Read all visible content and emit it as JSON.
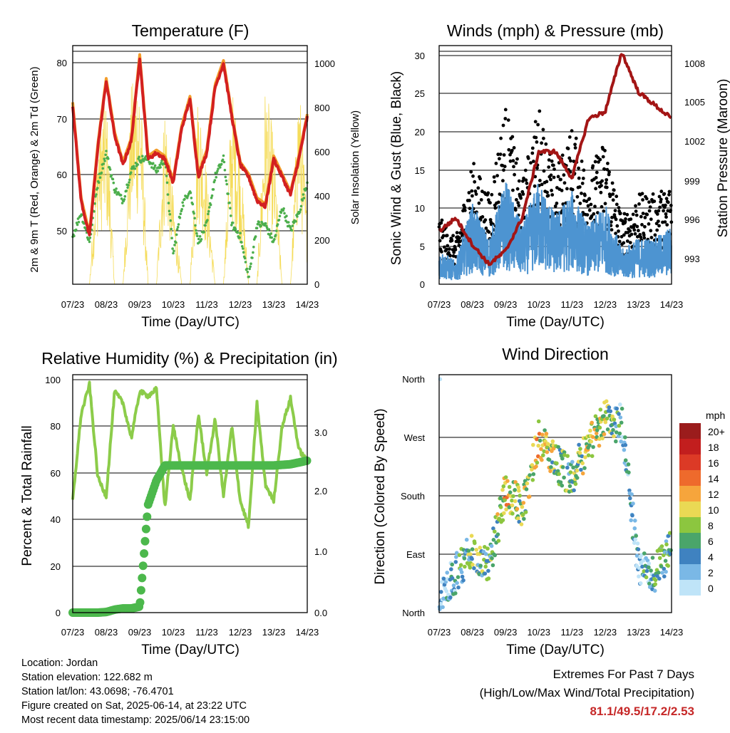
{
  "x_ticks": [
    "07/23",
    "08/23",
    "09/23",
    "10/23",
    "11/23",
    "12/23",
    "13/23",
    "14/23"
  ],
  "x_label": "Time (Day/UTC)",
  "temperature": {
    "title": "Temperature (F)",
    "ylabel_left": "2m & 9m T (Red, Orange) & 2m Td (Green)",
    "ylabel_right": "Solar Insolation (Yellow)",
    "left_ticks": [
      "50",
      "60",
      "70",
      "80"
    ],
    "right_ticks": [
      "0",
      "200",
      "400",
      "600",
      "800",
      "1000"
    ],
    "colors": {
      "t2m": "#d32020",
      "t9m": "#f39c2a",
      "td": "#4cae4c",
      "solar": "#f5dc5a"
    }
  },
  "winds": {
    "title": "Winds (mph) & Pressure (mb)",
    "ylabel_left": "Sonic Wind & Gust (Blue, Black)",
    "ylabel_right": "Station Pressure (Maroon)",
    "left_ticks": [
      "0",
      "5",
      "10",
      "15",
      "20",
      "25",
      "30"
    ],
    "right_ticks": [
      "993",
      "996",
      "999",
      "1002",
      "1005",
      "1008"
    ],
    "colors": {
      "wind": "#4d94d1",
      "gust": "#000000",
      "pressure": "#a31515"
    }
  },
  "humidity": {
    "title": "Relative Humidity (%) & Precipitation (in)",
    "ylabel_left": "Percent & Total Rainfall",
    "left_ticks": [
      "0",
      "20",
      "40",
      "60",
      "80",
      "100"
    ],
    "right_ticks": [
      "0.0",
      "1.0",
      "2.0",
      "3.0"
    ],
    "colors": {
      "rh": "#8ccc4a",
      "precip": "#4cb84c"
    }
  },
  "direction": {
    "title": "Wind Direction",
    "ylabel": "Direction (Colored By Speed)",
    "y_ticks": [
      "North",
      "East",
      "South",
      "West",
      "North"
    ],
    "legend_title": "mph",
    "legend": [
      {
        "label": "20+",
        "color": "#9b1c1c"
      },
      {
        "label": "18",
        "color": "#c21e1e"
      },
      {
        "label": "16",
        "color": "#dc3a26"
      },
      {
        "label": "14",
        "color": "#ee6a2c"
      },
      {
        "label": "12",
        "color": "#f6a53c"
      },
      {
        "label": "10",
        "color": "#ead954"
      },
      {
        "label": "8",
        "color": "#8cc63f"
      },
      {
        "label": "6",
        "color": "#4aa56a"
      },
      {
        "label": "4",
        "color": "#3f82c0"
      },
      {
        "label": "2",
        "color": "#7ab8e6"
      },
      {
        "label": "0",
        "color": "#bfe4f8"
      }
    ]
  },
  "info": {
    "location": "Location: Jordan",
    "elevation": "Station elevation: 122.682 m",
    "latlon": "Station lat/lon: 43.0698; -76.4701",
    "created": "Figure created on Sat, 2025-06-14, at 23:22 UTC",
    "recent": "Most recent data timestamp: 2025/06/14 23:15:00"
  },
  "extremes": {
    "line1": "Extremes For Past 7 Days",
    "line2": "(High/Low/Max Wind/Total Precipitation)",
    "values": "81.1/49.5/17.2/2.53"
  },
  "chart_data": [
    {
      "type": "line",
      "title": "Temperature (F)",
      "xlabel": "Time (Day/UTC)",
      "ylabel": "2m & 9m T (Red, Orange) & 2m Td (Green)",
      "ylim": [
        42,
        82
      ],
      "y2lim": [
        0,
        1050
      ],
      "x": [
        0,
        0.25,
        0.5,
        0.75,
        1,
        1.25,
        1.5,
        1.75,
        2,
        2.25,
        2.5,
        2.75,
        3,
        3.25,
        3.5,
        3.75,
        4,
        4.25,
        4.5,
        4.75,
        5,
        5.25,
        5.5,
        5.75,
        6,
        6.25,
        6.5,
        6.75,
        7
      ],
      "series": [
        {
          "name": "2m T",
          "values": [
            72,
            56,
            50,
            65,
            76,
            67,
            62,
            66,
            80,
            63,
            64,
            63,
            59,
            68,
            73,
            60,
            64,
            75,
            79,
            70,
            62,
            60,
            56,
            55,
            63,
            60,
            57,
            63,
            70
          ]
        },
        {
          "name": "2m Td",
          "values": [
            50,
            54,
            49,
            59,
            64,
            58,
            56,
            61,
            63,
            63,
            61,
            63,
            47,
            55,
            58,
            49,
            52,
            60,
            63,
            52,
            50,
            43,
            52,
            52,
            49,
            55,
            51,
            54,
            59
          ]
        },
        {
          "name": "Solar Insolation",
          "values": [
            0,
            0,
            0,
            700,
            850,
            0,
            0,
            880,
            1000,
            0,
            0,
            850,
            400,
            0,
            0,
            900,
            500,
            0,
            0,
            880,
            600,
            0,
            0,
            900,
            650,
            0,
            0,
            950,
            300
          ]
        }
      ]
    },
    {
      "type": "line",
      "title": "Winds (mph) & Pressure (mb)",
      "xlabel": "Time (Day/UTC)",
      "ylabel": "Sonic Wind & Gust (Blue, Black)",
      "ylim": [
        0,
        30.5
      ],
      "y2lim": [
        991,
        1009
      ],
      "x": [
        0,
        0.5,
        1,
        1.5,
        2,
        2.5,
        3,
        3.5,
        4,
        4.5,
        5,
        5.5,
        6,
        6.5,
        7
      ],
      "series": [
        {
          "name": "Sonic Wind",
          "values": [
            3,
            2,
            7,
            4,
            9,
            5,
            9,
            6,
            8,
            5,
            7,
            3,
            4,
            4,
            5
          ]
        },
        {
          "name": "Gust",
          "values": [
            6,
            4,
            11,
            8,
            16,
            9,
            16,
            10,
            14,
            10,
            13,
            6,
            8,
            8,
            9
          ]
        },
        {
          "name": "Station Pressure",
          "values": [
            995,
            996,
            994,
            992.5,
            993.5,
            996,
            1001,
            1001,
            999,
            1003.5,
            1004,
            1008.5,
            1005.5,
            1004.5,
            1003.5
          ]
        }
      ]
    },
    {
      "type": "line",
      "title": "Relative Humidity (%) & Precipitation (in)",
      "xlabel": "Time (Day/UTC)",
      "ylabel": "Percent & Total Rainfall",
      "ylim": [
        0,
        100
      ],
      "y2lim": [
        0,
        3.8
      ],
      "x": [
        0,
        0.25,
        0.5,
        0.75,
        1,
        1.25,
        1.5,
        1.75,
        2,
        2.25,
        2.5,
        2.75,
        3,
        3.25,
        3.5,
        3.75,
        4,
        4.25,
        4.5,
        4.75,
        5,
        5.25,
        5.5,
        5.75,
        6,
        6.25,
        6.5,
        6.75,
        7
      ],
      "series": [
        {
          "name": "Relative Humidity",
          "values": [
            48,
            85,
            98,
            58,
            50,
            95,
            90,
            75,
            95,
            93,
            96,
            45,
            80,
            62,
            48,
            85,
            60,
            83,
            50,
            80,
            48,
            37,
            90,
            55,
            48,
            80,
            92,
            70,
            65
          ]
        },
        {
          "name": "Total Precipitation",
          "values": [
            0,
            0,
            0,
            0,
            0.01,
            0.05,
            0.07,
            0.07,
            0.1,
            1.8,
            2.2,
            2.45,
            2.45,
            2.45,
            2.45,
            2.45,
            2.45,
            2.45,
            2.45,
            2.45,
            2.45,
            2.45,
            2.45,
            2.45,
            2.45,
            2.46,
            2.47,
            2.5,
            2.53
          ]
        }
      ]
    },
    {
      "type": "scatter",
      "title": "Wind Direction",
      "xlabel": "Time (Day/UTC)",
      "ylabel": "Direction (Colored By Speed)",
      "y_categories": [
        "North",
        "East",
        "South",
        "West",
        "North"
      ],
      "x_days": [
        0,
        1,
        1.5,
        2,
        2.5,
        3,
        3.5,
        4,
        4.5,
        5,
        5.5,
        6,
        6.5,
        7
      ],
      "direction_deg": [
        20,
        100,
        70,
        190,
        160,
        270,
        230,
        210,
        260,
        300,
        290,
        70,
        60,
        100
      ],
      "speed_mph": [
        2,
        8,
        6,
        12,
        8,
        12,
        8,
        6,
        10,
        10,
        4,
        4,
        6,
        6
      ]
    }
  ]
}
